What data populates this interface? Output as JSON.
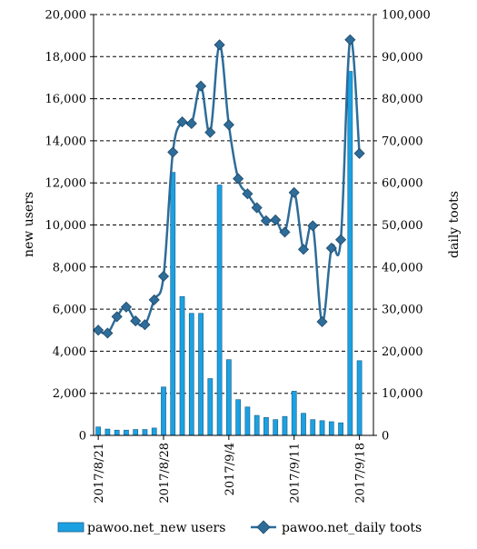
{
  "chart_data": {
    "type": "bar+line",
    "title": "",
    "x": [
      "2017/8/21",
      "2017/8/22",
      "2017/8/23",
      "2017/8/24",
      "2017/8/25",
      "2017/8/26",
      "2017/8/27",
      "2017/8/28",
      "2017/8/29",
      "2017/8/30",
      "2017/8/31",
      "2017/9/1",
      "2017/9/2",
      "2017/9/3",
      "2017/9/4",
      "2017/9/5",
      "2017/9/6",
      "2017/9/7",
      "2017/9/8",
      "2017/9/9",
      "2017/9/10",
      "2017/9/11",
      "2017/9/12",
      "2017/9/13",
      "2017/9/14",
      "2017/9/15",
      "2017/9/16",
      "2017/9/17",
      "2017/9/18",
      "2017/9/19"
    ],
    "x_tick_labels": [
      "2017/8/21",
      "2017/8/28",
      "2017/9/4",
      "2017/9/11",
      "2017/9/18"
    ],
    "x_tick_indices": [
      0,
      7,
      14,
      21,
      28
    ],
    "series": [
      {
        "name": "pawoo.net_new users",
        "type": "bar",
        "axis": "left",
        "color": "#1ba1e2",
        "values": [
          400,
          300,
          250,
          250,
          280,
          280,
          350,
          2300,
          12500,
          6600,
          5800,
          5800,
          2700,
          11900,
          3600,
          1700,
          1350,
          950,
          850,
          750,
          900,
          2100,
          1050,
          750,
          700,
          650,
          600,
          17300,
          3550,
          0
        ]
      },
      {
        "name": "pawoo.net_daily toots",
        "type": "line",
        "axis": "right",
        "color": "#2e6c99",
        "values": [
          25000,
          24300,
          28200,
          30500,
          27200,
          26300,
          32200,
          37800,
          67300,
          74500,
          74100,
          83000,
          72000,
          92800,
          73800,
          61000,
          57400,
          54100,
          51000,
          51200,
          48300,
          57700,
          44200,
          49800,
          27000,
          44500,
          46500,
          94000,
          67000,
          null
        ]
      }
    ],
    "ylabel_left": "new users",
    "ylabel_right": "daily toots",
    "ylim_left": [
      0,
      20000
    ],
    "ylim_right": [
      0,
      100000
    ],
    "yticks_left": [
      "0",
      "2,000",
      "4,000",
      "6,000",
      "8,000",
      "10,000",
      "12,000",
      "14,000",
      "16,000",
      "18,000",
      "20,000"
    ],
    "yticks_right": [
      "0",
      "10,000",
      "20,000",
      "30,000",
      "40,000",
      "50,000",
      "60,000",
      "70,000",
      "80,000",
      "90,000",
      "100,000"
    ],
    "grid": "horizontal dashed",
    "legend_position": "bottom"
  }
}
